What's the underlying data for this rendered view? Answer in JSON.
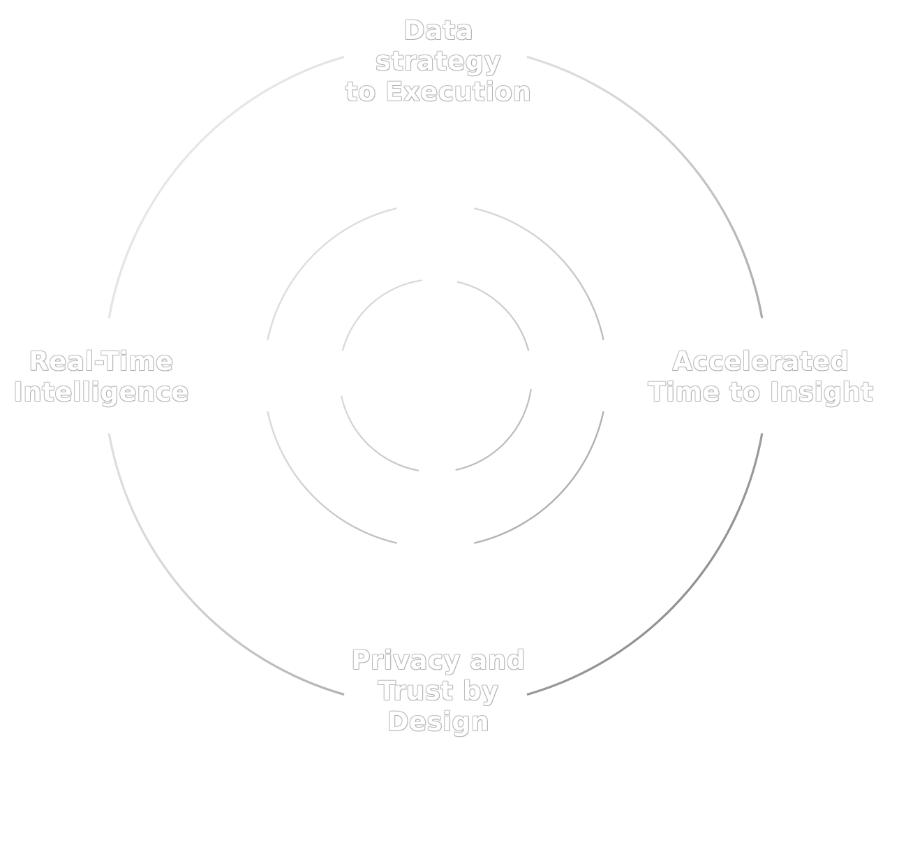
{
  "diagram": {
    "labels": {
      "top": "Data\nstrategy\nto Execution",
      "left": "Real-Time\nIntelligence",
      "right": "Accelerated\nTime to Insight",
      "bottom": "Privacy and\nTrust by\nDesign"
    },
    "colors": {
      "background": "#ffffff",
      "arc_dark": "#8c8c8c",
      "arc_light": "#efefef",
      "label_fill": "#ffffff",
      "label_outline": "#8a8a8a"
    }
  }
}
